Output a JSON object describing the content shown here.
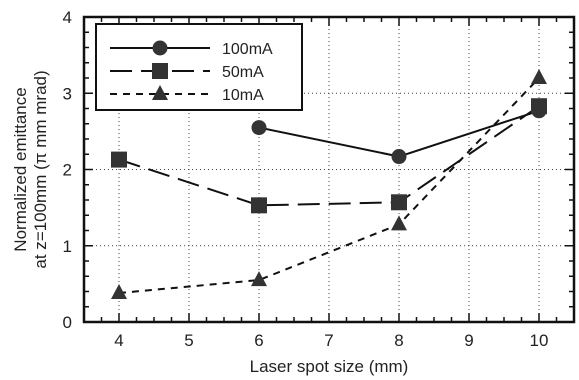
{
  "chart_data": {
    "type": "line",
    "xlabel": "Laser spot size (mm)",
    "ylabel_line1": "Normalized emittance",
    "ylabel_line2": "at z=100mm (π mm mrad)",
    "xlim": [
      3.5,
      10.5
    ],
    "ylim": [
      0,
      4
    ],
    "x_ticks": [
      4,
      5,
      6,
      7,
      8,
      9,
      10
    ],
    "y_ticks": [
      0,
      1,
      2,
      3,
      4
    ],
    "grid": true,
    "legend_position": "top-left",
    "series": [
      {
        "name": "100mA",
        "marker": "circle",
        "line_style": "solid",
        "x": [
          6,
          8,
          10
        ],
        "y": [
          2.55,
          2.17,
          2.77
        ]
      },
      {
        "name": "50mA",
        "marker": "square",
        "line_style": "long-dash",
        "x": [
          4,
          6,
          8,
          10
        ],
        "y": [
          2.13,
          1.53,
          1.57,
          2.83
        ]
      },
      {
        "name": "10mA",
        "marker": "triangle",
        "line_style": "short-dash",
        "x": [
          4,
          6,
          8,
          10
        ],
        "y": [
          0.38,
          0.55,
          1.28,
          3.2
        ]
      }
    ]
  }
}
